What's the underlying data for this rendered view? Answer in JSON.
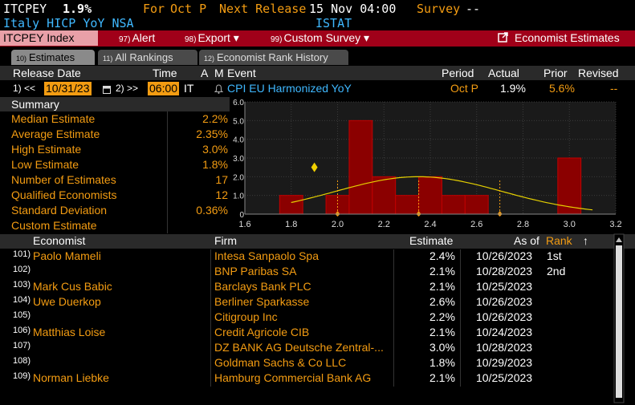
{
  "ticker": {
    "symbol": "ITCPEY",
    "value": "1.9%",
    "for_label": "For",
    "period": "Oct P",
    "next_release_label": "Next Release",
    "next_release": "15 Nov 04:00",
    "survey_label": "Survey",
    "survey_value": "--",
    "description": "Italy HICP YoY NSA",
    "source": "ISTAT"
  },
  "menu": {
    "index_label": "ITCPEY Index",
    "items": [
      {
        "num": "97)",
        "label": "Alert"
      },
      {
        "num": "98)",
        "label": "Export ▾"
      },
      {
        "num": "99)",
        "label": "Custom Survey ▾"
      }
    ],
    "economist_estimates": "Economist Estimates"
  },
  "tabs": [
    {
      "num": "10)",
      "label": "Estimates"
    },
    {
      "num": "11)",
      "label": "All Rankings"
    },
    {
      "num": "12)",
      "label": "Economist Rank History"
    }
  ],
  "header": {
    "release_date": "Release Date",
    "time": "Time",
    "a": "A",
    "m": "M",
    "event": "Event",
    "period": "Period",
    "actual": "Actual",
    "prior": "Prior",
    "revised": "Revised"
  },
  "release_row": {
    "prev": "1) <<",
    "date": "10/31/23",
    "next": "2) >>",
    "time": "06:00",
    "country": "IT",
    "event": "CPI EU Harmonized YoY",
    "period": "Oct P",
    "actual": "1.9%",
    "prior": "5.6%",
    "revised": "--"
  },
  "summary": {
    "title": "Summary",
    "rows": [
      {
        "label": "Median Estimate",
        "value": "2.2%"
      },
      {
        "label": "Average Estimate",
        "value": "2.35%"
      },
      {
        "label": "High Estimate",
        "value": "3.0%"
      },
      {
        "label": "Low Estimate",
        "value": "1.8%"
      },
      {
        "label": "Number of Estimates",
        "value": "17"
      },
      {
        "label": "Qualified Economists",
        "value": "12"
      },
      {
        "label": "Standard Deviation",
        "value": "0.36%"
      },
      {
        "label": "Custom Estimate",
        "value": ""
      }
    ]
  },
  "chart_data": {
    "type": "bar",
    "x_ticks": [
      "1.6",
      "1.8",
      "2.0",
      "2.2",
      "2.4",
      "2.6",
      "2.8",
      "3.0",
      "3.2"
    ],
    "y_ticks": [
      "0",
      "1.0",
      "2.0",
      "3.0",
      "4.0",
      "5.0",
      "6.0"
    ],
    "xlim": [
      1.6,
      3.2
    ],
    "ylim": [
      0,
      6
    ],
    "bins": [
      {
        "x": 1.8,
        "count": 1
      },
      {
        "x": 1.9,
        "count": 0
      },
      {
        "x": 2.0,
        "count": 1
      },
      {
        "x": 2.1,
        "count": 5
      },
      {
        "x": 2.2,
        "count": 2
      },
      {
        "x": 2.3,
        "count": 1
      },
      {
        "x": 2.4,
        "count": 2
      },
      {
        "x": 2.5,
        "count": 1
      },
      {
        "x": 2.6,
        "count": 1
      },
      {
        "x": 3.0,
        "count": 3
      }
    ],
    "prior_marker": 1.9,
    "bar_color": "#8b0000",
    "curve_color": "#e5d000"
  },
  "table": {
    "headers": {
      "economist": "Economist",
      "firm": "Firm",
      "estimate": "Estimate",
      "as_of": "As of",
      "rank": "Rank"
    },
    "rows": [
      {
        "num": "101)",
        "economist": "Paolo Mameli",
        "firm": "Intesa Sanpaolo Spa",
        "estimate": "2.4%",
        "as_of": "10/26/2023",
        "rank": "1st"
      },
      {
        "num": "102)",
        "economist": "",
        "firm": "BNP Paribas SA",
        "estimate": "2.1%",
        "as_of": "10/28/2023",
        "rank": "2nd"
      },
      {
        "num": "103)",
        "economist": "Mark Cus Babic",
        "firm": "Barclays Bank PLC",
        "estimate": "2.1%",
        "as_of": "10/25/2023",
        "rank": ""
      },
      {
        "num": "104)",
        "economist": "Uwe Duerkop",
        "firm": "Berliner Sparkasse",
        "estimate": "2.6%",
        "as_of": "10/26/2023",
        "rank": ""
      },
      {
        "num": "105)",
        "economist": "",
        "firm": "Citigroup Inc",
        "estimate": "2.2%",
        "as_of": "10/26/2023",
        "rank": ""
      },
      {
        "num": "106)",
        "economist": "Matthias Loise",
        "firm": "Credit Agricole CIB",
        "estimate": "2.1%",
        "as_of": "10/24/2023",
        "rank": ""
      },
      {
        "num": "107)",
        "economist": "",
        "firm": "DZ BANK AG Deutsche Zentral-...",
        "estimate": "3.0%",
        "as_of": "10/28/2023",
        "rank": ""
      },
      {
        "num": "108)",
        "economist": "",
        "firm": "Goldman Sachs & Co LLC",
        "estimate": "1.8%",
        "as_of": "10/29/2023",
        "rank": ""
      },
      {
        "num": "109)",
        "economist": "Norman Liebke",
        "firm": "Hamburg Commercial Bank AG",
        "estimate": "2.1%",
        "as_of": "10/25/2023",
        "rank": ""
      }
    ]
  }
}
